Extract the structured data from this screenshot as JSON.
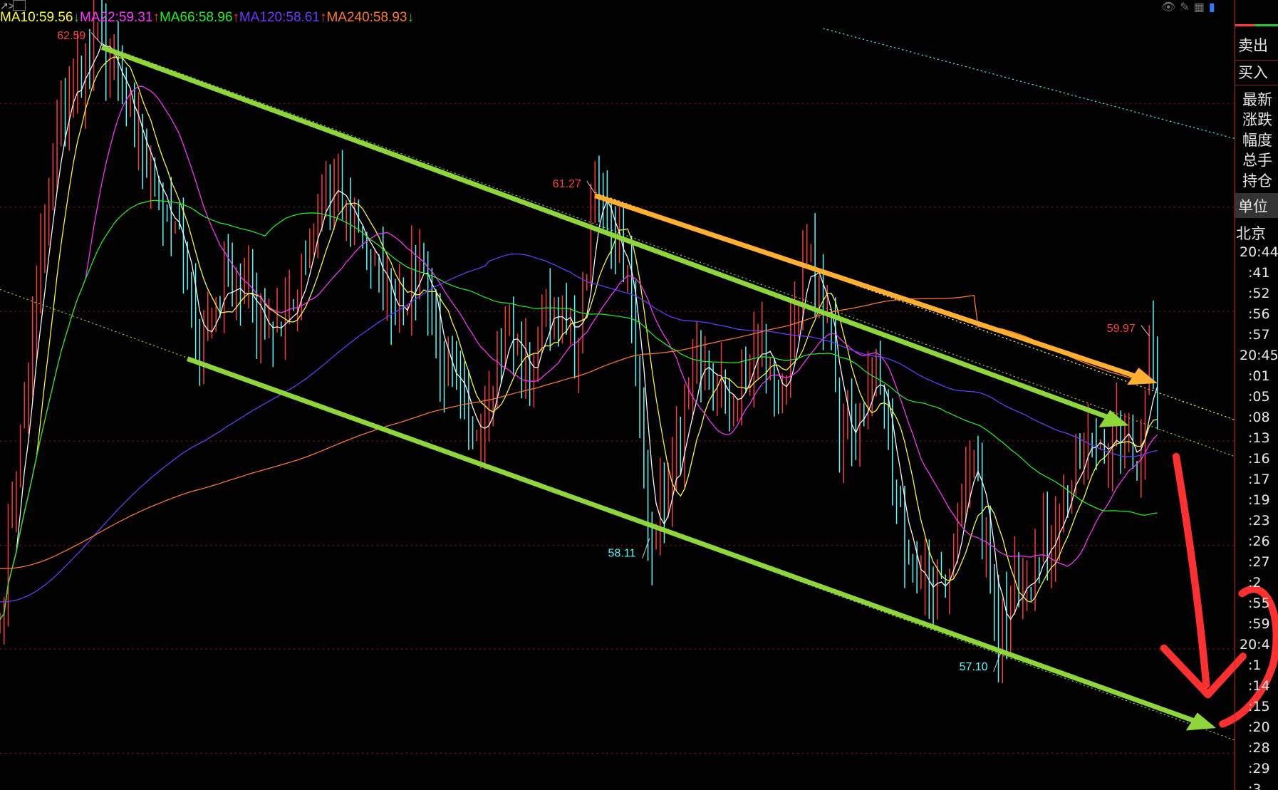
{
  "legend": [
    {
      "label": "MA10:59.56",
      "color": "#ffff33",
      "arrow": "↓",
      "arrow_color": "#22cc33"
    },
    {
      "label": "MA22:59.31",
      "color": "#ff33ff",
      "arrow": "↑",
      "arrow_color": "#ff4040"
    },
    {
      "label": "MA66:58.96",
      "color": "#22ee22",
      "arrow": "↑",
      "arrow_color": "#ff4040"
    },
    {
      "label": "MA120:58.61",
      "color": "#6a3cff",
      "arrow": "↑",
      "arrow_color": "#ff4040"
    },
    {
      "label": "MA240:58.93",
      "color": "#ff7a2a",
      "arrow": "↓",
      "arrow_color": "#22cc33"
    }
  ],
  "toolbar_icons": [
    "hide-eye-icon",
    "pencil-icon",
    "grid-icon",
    "panel-toggle-icon"
  ],
  "annotations": [
    {
      "text": "62.59",
      "type": "high",
      "color": "#ff4040"
    },
    {
      "text": "61.27",
      "type": "high",
      "color": "#ff4040"
    },
    {
      "text": "58.11",
      "type": "low",
      "color": "#54ffff"
    },
    {
      "text": "57.10",
      "type": "low",
      "color": "#54ffff"
    },
    {
      "text": "59.97",
      "type": "high",
      "color": "#ff4040"
    }
  ],
  "panel": {
    "sell": "卖出",
    "buy": "买入",
    "fields": [
      "最新",
      "涨跌",
      "幅度",
      "总手",
      "持仓"
    ],
    "unit": "单位",
    "beijing": "北京",
    "times": [
      "20:44",
      ":41",
      ":52",
      ":56",
      ":57",
      "20:45",
      ":01",
      ":05",
      ":08",
      ":13",
      ":16",
      ":17",
      ":19",
      ":23",
      ":26",
      ":27",
      ":2",
      ":55",
      ":59",
      "20:4",
      ":1",
      ":14",
      ":15",
      ":20",
      ":28",
      ":29",
      ":3"
    ]
  },
  "colors": {
    "up": "#ff3c3c",
    "down": "#54ffff",
    "channel": "#8fd63a",
    "resistance": "#ffb030",
    "drawing": "#ff3030",
    "grid": "#7a1a1a"
  },
  "chart_data": {
    "type": "candlestick",
    "title": "",
    "price_keypoints": [
      [
        0,
        57.34
      ],
      [
        8,
        59.99
      ],
      [
        15,
        61.98
      ],
      [
        25,
        62.59
      ],
      [
        33,
        61.69
      ],
      [
        43,
        60.88
      ],
      [
        48,
        59.85
      ],
      [
        56,
        60.43
      ],
      [
        66,
        59.99
      ],
      [
        72,
        60.14
      ],
      [
        80,
        61.24
      ],
      [
        88,
        60.88
      ],
      [
        96,
        60.14
      ],
      [
        104,
        60.58
      ],
      [
        109,
        59.55
      ],
      [
        116,
        58.96
      ],
      [
        124,
        59.99
      ],
      [
        130,
        59.48
      ],
      [
        134,
        60.21
      ],
      [
        142,
        59.85
      ],
      [
        146,
        61.27
      ],
      [
        154,
        60.51
      ],
      [
        159,
        58.11
      ],
      [
        164,
        58.52
      ],
      [
        172,
        59.63
      ],
      [
        180,
        59.26
      ],
      [
        186,
        59.85
      ],
      [
        192,
        59.33
      ],
      [
        198,
        60.58
      ],
      [
        204,
        59.99
      ],
      [
        206,
        58.81
      ],
      [
        215,
        59.63
      ],
      [
        220,
        58.37
      ],
      [
        226,
        57.63
      ],
      [
        233,
        57.78
      ],
      [
        239,
        58.81
      ],
      [
        245,
        57.1
      ],
      [
        249,
        57.78
      ],
      [
        255,
        57.86
      ],
      [
        260,
        58.37
      ],
      [
        268,
        58.96
      ],
      [
        276,
        58.96
      ],
      [
        279,
        58.67
      ],
      [
        282,
        59.97
      ],
      [
        284,
        59.26
      ]
    ],
    "moving_averages": [
      10,
      22,
      66,
      120,
      240
    ],
    "ylim": [
      55.3,
      63.2
    ],
    "grid": "horizontal dotted"
  }
}
